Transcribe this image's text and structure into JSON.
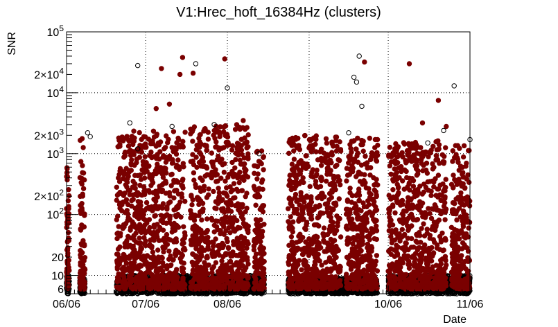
{
  "chart_data": {
    "type": "scatter",
    "title": "V1:Hrec_hoft_16384Hz (clusters)",
    "xlabel": "Date",
    "ylabel": "SNR",
    "x_scale": "date",
    "xlim": [
      "2023-06-06",
      "2023-11-06"
    ],
    "y_scale": "log",
    "ylim": [
      5,
      100000
    ],
    "grid": true,
    "x_ticks": [
      {
        "value": "2023-06-06",
        "label": "06/06"
      },
      {
        "value": "2023-07-06",
        "label": "07/06"
      },
      {
        "value": "2023-08-06",
        "label": "08/06"
      },
      {
        "value": "2023-10-06",
        "label": "10/06"
      },
      {
        "value": "2023-11-06",
        "label": "11/06"
      }
    ],
    "x_gridlines": [
      "2023-07-06",
      "2023-08-06",
      "2023-09-06",
      "2023-10-06"
    ],
    "y_ticks": [
      {
        "value": 6,
        "label": "6"
      },
      {
        "value": 10,
        "label": "10"
      },
      {
        "value": 20,
        "label": "20"
      },
      {
        "value": 100,
        "label": "10^2"
      },
      {
        "value": 200,
        "label": "2×10^2"
      },
      {
        "value": 1000,
        "label": "10^3"
      },
      {
        "value": 2000,
        "label": "2×10^3"
      },
      {
        "value": 10000,
        "label": "10^4"
      },
      {
        "value": 20000,
        "label": "2×10^4"
      },
      {
        "value": 100000,
        "label": "10^5"
      }
    ],
    "y_gridlines": [
      10,
      100,
      1000,
      10000
    ],
    "series": [
      {
        "marker": "filled-circle",
        "color": "#7a0000",
        "segments": [
          {
            "start": "2023-06-06",
            "end": "2023-06-07",
            "ymax": 700
          },
          {
            "start": "2023-06-11",
            "end": "2023-06-13",
            "ymax": 1900
          },
          {
            "start": "2023-06-25",
            "end": "2023-07-21",
            "ymax": 2500
          },
          {
            "start": "2023-07-23",
            "end": "2023-07-30",
            "ymax": 2800
          },
          {
            "start": "2023-07-31",
            "end": "2023-08-14",
            "ymax": 3000
          },
          {
            "start": "2023-08-16",
            "end": "2023-08-20",
            "ymax": 1200
          },
          {
            "start": "2023-08-29",
            "end": "2023-09-18",
            "ymax": 2000
          },
          {
            "start": "2023-09-20",
            "end": "2023-10-02",
            "ymax": 1800
          },
          {
            "start": "2023-10-06",
            "end": "2023-10-28",
            "ymax": 1700
          },
          {
            "start": "2023-10-30",
            "end": "2023-11-06",
            "ymax": 1500
          }
        ],
        "outliers": [
          [
            "2023-07-10",
            5500
          ],
          [
            "2023-07-12",
            25000
          ],
          [
            "2023-07-15",
            6500
          ],
          [
            "2023-07-19",
            20000
          ],
          [
            "2023-07-20",
            38000
          ],
          [
            "2023-07-24",
            21000
          ],
          [
            "2023-08-05",
            36000
          ],
          [
            "2023-08-12",
            3500
          ],
          [
            "2023-09-27",
            32000
          ],
          [
            "2023-10-14",
            30000
          ],
          [
            "2023-10-19",
            3200
          ],
          [
            "2023-10-25",
            7500
          ],
          [
            "2023-10-28",
            2800
          ]
        ]
      },
      {
        "marker": "open-circle",
        "color": "#000000",
        "outliers": [
          [
            "2023-06-14",
            2200
          ],
          [
            "2023-06-15",
            1900
          ],
          [
            "2023-06-30",
            3200
          ],
          [
            "2023-07-03",
            28000
          ],
          [
            "2023-07-03",
            1200
          ],
          [
            "2023-07-16",
            2800
          ],
          [
            "2023-07-25",
            30000
          ],
          [
            "2023-08-01",
            3000
          ],
          [
            "2023-08-06",
            12000
          ],
          [
            "2023-08-18",
            1000
          ],
          [
            "2023-09-21",
            2200
          ],
          [
            "2023-09-23",
            18000
          ],
          [
            "2023-09-24",
            15000
          ],
          [
            "2023-09-25",
            40000
          ],
          [
            "2023-09-26",
            6000
          ],
          [
            "2023-10-21",
            1500
          ],
          [
            "2023-10-27",
            2400
          ],
          [
            "2023-10-31",
            13000
          ],
          [
            "2023-11-06",
            1700
          ]
        ],
        "segments": [
          {
            "start": "2023-06-06",
            "end": "2023-06-07",
            "ymax": 10
          },
          {
            "start": "2023-06-11",
            "end": "2023-06-13",
            "ymax": 9
          },
          {
            "start": "2023-06-25",
            "end": "2023-07-30",
            "ymax": 10
          },
          {
            "start": "2023-07-31",
            "end": "2023-08-20",
            "ymax": 10
          },
          {
            "start": "2023-08-29",
            "end": "2023-10-02",
            "ymax": 9
          },
          {
            "start": "2023-10-06",
            "end": "2023-11-06",
            "ymax": 10
          }
        ]
      }
    ]
  }
}
